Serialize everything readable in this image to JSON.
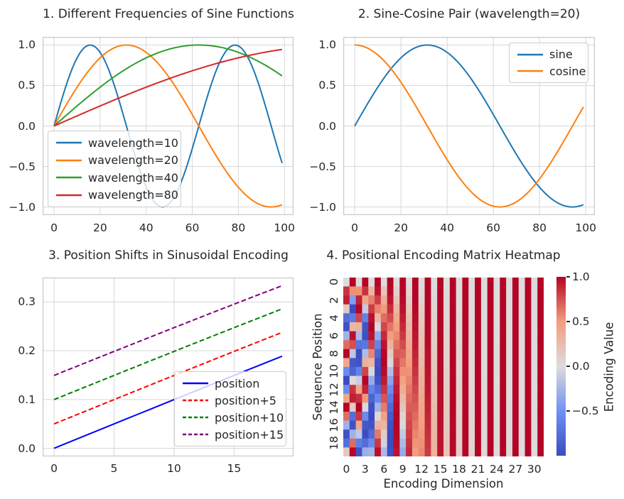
{
  "figure": {
    "background": "#ffffff",
    "text_color": "#262626",
    "grid_color": "#d7d7d7",
    "spine_color": "#c8c8c8",
    "legend_border_color": "#cccccc"
  },
  "chart_data": [
    {
      "id": "sine-frequencies",
      "type": "line",
      "title": "1. Different Frequencies of Sine Functions",
      "y_formula": "y = sin((x + shift) / scale)",
      "x_start": 0,
      "x_stop": 99,
      "n_points": 100,
      "xlim": [
        -4.95,
        103.95
      ],
      "ylim": [
        -1.1,
        1.1
      ],
      "grid": true,
      "legend_loc": "lower left",
      "xticks": [
        {
          "v": 0,
          "label": "0"
        },
        {
          "v": 20,
          "label": "20"
        },
        {
          "v": 40,
          "label": "40"
        },
        {
          "v": 60,
          "label": "60"
        },
        {
          "v": 80,
          "label": "80"
        },
        {
          "v": 100,
          "label": "100"
        }
      ],
      "yticks": [
        {
          "v": 1.0,
          "label": "1.0"
        },
        {
          "v": 0.5,
          "label": "0.5"
        },
        {
          "v": 0.0,
          "label": "0.0"
        },
        {
          "v": -0.5,
          "label": "−0.5"
        },
        {
          "v": -1.0,
          "label": "−1.0"
        }
      ],
      "series": [
        {
          "label": "wavelength=10",
          "fn": "sin",
          "scale": 10,
          "shift": 0,
          "color": "#1f77b4",
          "dash": null,
          "width": 2
        },
        {
          "label": "wavelength=20",
          "fn": "sin",
          "scale": 20,
          "shift": 0,
          "color": "#ff7f0e",
          "dash": null,
          "width": 2
        },
        {
          "label": "wavelength=40",
          "fn": "sin",
          "scale": 40,
          "shift": 0,
          "color": "#2ca02c",
          "dash": null,
          "width": 2
        },
        {
          "label": "wavelength=80",
          "fn": "sin",
          "scale": 80,
          "shift": 0,
          "color": "#d62728",
          "dash": null,
          "width": 2
        }
      ]
    },
    {
      "id": "sine-cosine-pair",
      "type": "line",
      "title": "2. Sine-Cosine Pair (wavelength=20)",
      "y_formula": "y = fn(x / 20)",
      "x_start": 0,
      "x_stop": 99,
      "n_points": 100,
      "xlim": [
        -4.95,
        103.95
      ],
      "ylim": [
        -1.1,
        1.1
      ],
      "grid": true,
      "legend_loc": "upper right",
      "xticks": [
        {
          "v": 0,
          "label": "0"
        },
        {
          "v": 20,
          "label": "20"
        },
        {
          "v": 40,
          "label": "40"
        },
        {
          "v": 60,
          "label": "60"
        },
        {
          "v": 80,
          "label": "80"
        },
        {
          "v": 100,
          "label": "100"
        }
      ],
      "yticks": [
        {
          "v": 1.0,
          "label": "1.0"
        },
        {
          "v": 0.5,
          "label": "0.5"
        },
        {
          "v": 0.0,
          "label": "0.0"
        },
        {
          "v": -0.5,
          "label": "−0.5"
        },
        {
          "v": -1.0,
          "label": "−1.0"
        }
      ],
      "series": [
        {
          "label": "sine",
          "fn": "sin",
          "scale": 20,
          "shift": 0,
          "color": "#1f77b4",
          "dash": null,
          "width": 2
        },
        {
          "label": "cosine",
          "fn": "cos",
          "scale": 20,
          "shift": 0,
          "color": "#ff7f0e",
          "dash": null,
          "width": 2
        }
      ]
    },
    {
      "id": "position-shifts",
      "type": "line",
      "title": "3. Position Shifts in Sinusoidal Encoding",
      "y_formula": "y = sin((x + shift) / 100)",
      "x_start": 0,
      "x_stop": 19,
      "n_points": 20,
      "xlim": [
        -0.95,
        19.95
      ],
      "ylim": [
        -0.016675,
        0.350164
      ],
      "grid": true,
      "legend_loc": "lower right",
      "xticks": [
        {
          "v": 0,
          "label": "0"
        },
        {
          "v": 5,
          "label": "5"
        },
        {
          "v": 10,
          "label": "10"
        },
        {
          "v": 15,
          "label": "15"
        }
      ],
      "yticks": [
        {
          "v": 0.3,
          "label": "0.3"
        },
        {
          "v": 0.2,
          "label": "0.2"
        },
        {
          "v": 0.1,
          "label": "0.1"
        },
        {
          "v": 0.0,
          "label": "0.0"
        }
      ],
      "series": [
        {
          "label": "position",
          "fn": "sin",
          "scale": 100,
          "shift": 0,
          "color": "#0000ff",
          "dash": null,
          "width": 2
        },
        {
          "label": "position+5",
          "fn": "sin",
          "scale": 100,
          "shift": 5,
          "color": "#ff0000",
          "dash": "7,3.5",
          "width": 2
        },
        {
          "label": "position+10",
          "fn": "sin",
          "scale": 100,
          "shift": 10,
          "color": "#008000",
          "dash": "7,3.5",
          "width": 2
        },
        {
          "label": "position+15",
          "fn": "sin",
          "scale": 100,
          "shift": 15,
          "color": "#800080",
          "dash": "7,3.5",
          "width": 2
        }
      ]
    },
    {
      "id": "positional-encoding-heatmap",
      "type": "heatmap",
      "title": "4. Positional Encoding Matrix Heatmap",
      "xlabel": "Encoding Dimension",
      "ylabel": "Sequence Position",
      "colorbar_label": "Encoding Value",
      "n_positions": 20,
      "d_model": 32,
      "base": 10000,
      "formula": "PE[pos,2i]=sin(pos/base^(2i/d_model)); PE[pos,2i+1]=cos(pos/base^(2i/d_model))",
      "vmin": -1,
      "vmax": 1,
      "colormap": "coolwarm",
      "colormap_anchors": [
        "#3b4cc0",
        "#6f92f3",
        "#dddcdc",
        "#f49c7c",
        "#b40426"
      ],
      "xticks": [
        {
          "v": 0,
          "label": "0"
        },
        {
          "v": 3,
          "label": "3"
        },
        {
          "v": 6,
          "label": "6"
        },
        {
          "v": 9,
          "label": "9"
        },
        {
          "v": 12,
          "label": "12"
        },
        {
          "v": 15,
          "label": "15"
        },
        {
          "v": 18,
          "label": "18"
        },
        {
          "v": 21,
          "label": "21"
        },
        {
          "v": 24,
          "label": "24"
        },
        {
          "v": 27,
          "label": "27"
        },
        {
          "v": 30,
          "label": "30"
        }
      ],
      "yticks": [
        {
          "v": 0,
          "label": "0"
        },
        {
          "v": 2,
          "label": "2"
        },
        {
          "v": 4,
          "label": "4"
        },
        {
          "v": 6,
          "label": "6"
        },
        {
          "v": 8,
          "label": "8"
        },
        {
          "v": 10,
          "label": "10"
        },
        {
          "v": 12,
          "label": "12"
        },
        {
          "v": 14,
          "label": "14"
        },
        {
          "v": 16,
          "label": "16"
        },
        {
          "v": 18,
          "label": "18"
        }
      ],
      "colorbar_ticks": [
        {
          "v": 1.0,
          "label": "1.0"
        },
        {
          "v": 0.5,
          "label": "0.5"
        },
        {
          "v": 0.0,
          "label": "0.0"
        },
        {
          "v": -0.5,
          "label": "−0.5"
        }
      ]
    }
  ]
}
